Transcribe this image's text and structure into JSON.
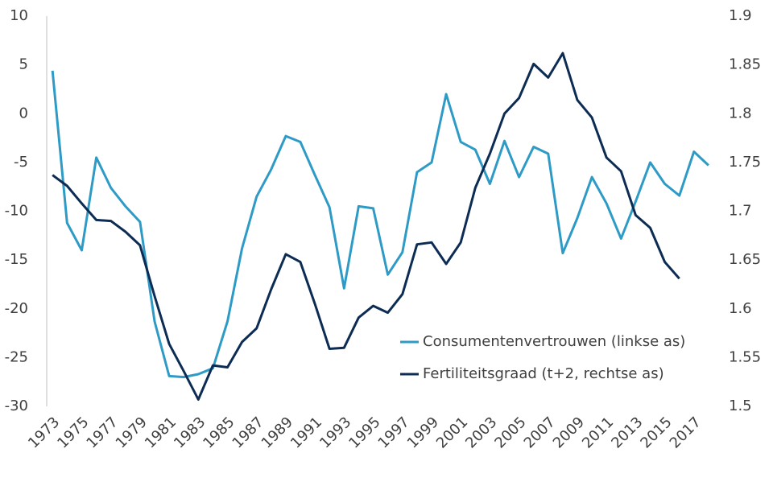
{
  "chart_data": {
    "type": "line",
    "x": [
      1973,
      1974,
      1975,
      1976,
      1977,
      1978,
      1979,
      1980,
      1981,
      1982,
      1983,
      1984,
      1985,
      1986,
      1987,
      1988,
      1989,
      1990,
      1991,
      1992,
      1993,
      1994,
      1995,
      1996,
      1997,
      1998,
      1999,
      2000,
      2001,
      2002,
      2003,
      2004,
      2005,
      2006,
      2007,
      2008,
      2009,
      2010,
      2011,
      2012,
      2013,
      2014,
      2015,
      2016,
      2017,
      2018
    ],
    "series": [
      {
        "name": "Consumentenvertrouwen (linkse as)",
        "color": "#2e9bc6",
        "axis": "y",
        "values": [
          4.4,
          -11.2,
          -14,
          -4.5,
          -7.6,
          -9.5,
          -11.1,
          -21.3,
          -26.9,
          -27,
          -26.7,
          -26.1,
          -21.3,
          -13.8,
          -8.5,
          -5.7,
          -2.3,
          -2.9,
          -6.3,
          -9.6,
          -17.9,
          -9.5,
          -9.7,
          -16.5,
          -14.2,
          -6,
          -5,
          2,
          -2.9,
          -3.7,
          -7.2,
          -2.8,
          -6.5,
          -3.4,
          -4.1,
          -14.3,
          -10.7,
          -6.5,
          -9.2,
          -12.8,
          -9,
          -5,
          -7.2,
          -8.4,
          -3.9,
          -5.3
        ]
      },
      {
        "name": "Fertiliteitsgraad (t+2, rechtse as)",
        "color": "#0d2c54",
        "axis": "y2",
        "values": [
          1.737,
          1.726,
          1.708,
          1.691,
          1.69,
          1.679,
          1.665,
          1.613,
          1.564,
          1.536,
          1.507,
          1.542,
          1.54,
          1.566,
          1.58,
          1.62,
          1.656,
          1.648,
          1.605,
          1.559,
          1.56,
          1.591,
          1.603,
          1.596,
          1.615,
          1.666,
          1.668,
          1.646,
          1.668,
          1.724,
          1.759,
          1.8,
          1.816,
          1.851,
          1.837,
          1.862,
          1.814,
          1.796,
          1.755,
          1.741,
          1.696,
          1.683,
          1.648,
          1.631,
          null,
          null
        ]
      }
    ],
    "xlim": [
      1972.6,
      2018.5
    ],
    "xticks": [
      1973,
      1975,
      1977,
      1979,
      1981,
      1983,
      1985,
      1987,
      1989,
      1991,
      1993,
      1995,
      1997,
      1999,
      2001,
      2003,
      2005,
      2007,
      2009,
      2011,
      2013,
      2015,
      2017
    ],
    "ylim": [
      -30,
      10
    ],
    "yticks": [
      10,
      5,
      0,
      -5,
      -10,
      -15,
      -20,
      -25,
      -30
    ],
    "y2lim": [
      1.5,
      1.9
    ],
    "y2ticks": [
      1.9,
      1.85,
      1.8,
      1.75,
      1.7,
      1.65,
      1.6,
      1.55,
      1.5
    ],
    "grid": false
  }
}
